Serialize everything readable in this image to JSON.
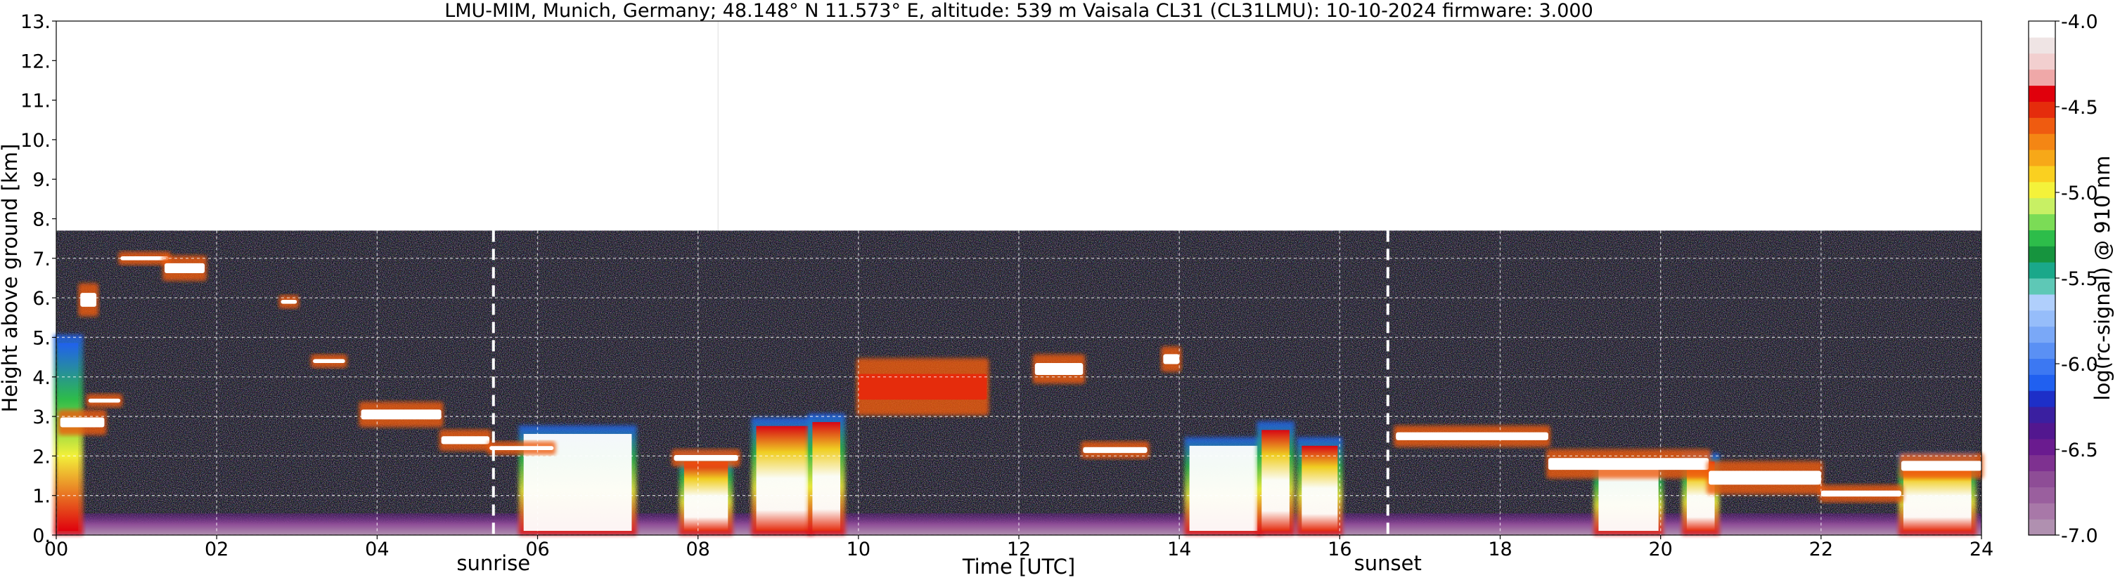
{
  "chart_data": {
    "type": "heatmap",
    "title": "LMU-MIM, Munich, Germany; 48.148° N 11.573° E, altitude: 539 m    Vaisala CL31 (CL31LMU): 10-10-2024    firmware: 3.000",
    "xlabel": "Time [UTC]",
    "ylabel": "Height above ground [km]",
    "xlim": [
      0,
      24
    ],
    "ylim": [
      0,
      13
    ],
    "x_ticks": [
      0,
      2,
      4,
      6,
      8,
      10,
      12,
      14,
      16,
      18,
      20,
      22,
      24
    ],
    "x_tick_labels": [
      "00",
      "02",
      "04",
      "06",
      "08",
      "10",
      "12",
      "14",
      "16",
      "18",
      "20",
      "22",
      "24"
    ],
    "y_ticks": [
      0,
      1,
      2,
      3,
      4,
      5,
      6,
      7,
      8,
      9,
      10,
      11,
      12,
      13
    ],
    "y_tick_labels": [
      "0.",
      "1.",
      "2.",
      "3.",
      "4.",
      "5.",
      "6.",
      "7.",
      "8.",
      "9.",
      "10.",
      "11.",
      "12.",
      "13."
    ],
    "grid": true,
    "data_top_km": 7.7,
    "sunrise_time": 5.45,
    "sunset_time": 16.6,
    "annotations": [
      {
        "text": "sunrise",
        "x": 5.45
      },
      {
        "text": "sunset",
        "x": 16.6
      }
    ],
    "colorbar": {
      "label": "log(rc-signal) @ 910 nm",
      "min": -7.0,
      "max": -4.0,
      "ticks": [
        -7.0,
        -6.5,
        -6.0,
        -5.5,
        -5.0,
        -4.5,
        -4.0
      ],
      "tick_labels": [
        "-7.0",
        "-6.5",
        "-6.0",
        "-5.5",
        "-5.0",
        "-4.5",
        "-4.0"
      ],
      "colors": [
        "#b090b0",
        "#a878a8",
        "#9a5f9e",
        "#8e4d96",
        "#7e3190",
        "#6a1b8f",
        "#52178f",
        "#3a1fa0",
        "#1d2fc8",
        "#2060f0",
        "#3c78f2",
        "#5a90f4",
        "#7aa8f7",
        "#96bdfa",
        "#b0cffc",
        "#5ec8b6",
        "#1aa88a",
        "#16943e",
        "#2dbd4a",
        "#7bdc56",
        "#c8f064",
        "#f4f23a",
        "#fad020",
        "#f7a818",
        "#f48614",
        "#ef5b10",
        "#e52c0c",
        "#e0000c",
        "#efa8a8",
        "#f2cfcf",
        "#efe4e4",
        "#ffffff"
      ]
    },
    "cloud_layers": [
      {
        "x": [
          0.05,
          0.6
        ],
        "y": [
          2.6,
          3.1
        ],
        "level": "very-high"
      },
      {
        "x": [
          0.3,
          0.5
        ],
        "y": [
          5.6,
          6.3
        ],
        "level": "very-high"
      },
      {
        "x": [
          0.8,
          1.4
        ],
        "y": [
          6.9,
          7.1
        ],
        "level": "very-high"
      },
      {
        "x": [
          1.35,
          1.85
        ],
        "y": [
          6.5,
          7.0
        ],
        "level": "very-high"
      },
      {
        "x": [
          2.8,
          3.0
        ],
        "y": [
          5.8,
          6.0
        ],
        "level": "very-high"
      },
      {
        "x": [
          3.2,
          3.6
        ],
        "y": [
          4.3,
          4.5
        ],
        "level": "very-high"
      },
      {
        "x": [
          0.4,
          0.8
        ],
        "y": [
          3.3,
          3.5
        ],
        "level": "very-high"
      },
      {
        "x": [
          3.8,
          4.8
        ],
        "y": [
          2.8,
          3.3
        ],
        "level": "very-high"
      },
      {
        "x": [
          4.8,
          5.4
        ],
        "y": [
          2.2,
          2.6
        ],
        "level": "very-high"
      },
      {
        "x": [
          5.4,
          6.2
        ],
        "y": [
          2.1,
          2.3
        ],
        "level": "very-high"
      },
      {
        "x": [
          7.7,
          8.5
        ],
        "y": [
          1.8,
          2.1
        ],
        "level": "very-high"
      },
      {
        "x": [
          10.0,
          11.6
        ],
        "y": [
          3.1,
          4.4
        ],
        "level": "high"
      },
      {
        "x": [
          12.2,
          12.8
        ],
        "y": [
          3.9,
          4.5
        ],
        "level": "very-high"
      },
      {
        "x": [
          13.8,
          14.0
        ],
        "y": [
          4.2,
          4.7
        ],
        "level": "very-high"
      },
      {
        "x": [
          12.8,
          13.6
        ],
        "y": [
          2.0,
          2.3
        ],
        "level": "very-high"
      },
      {
        "x": [
          16.7,
          18.6
        ],
        "y": [
          2.3,
          2.7
        ],
        "level": "very-high"
      },
      {
        "x": [
          18.6,
          20.6
        ],
        "y": [
          1.5,
          2.1
        ],
        "level": "very-high"
      },
      {
        "x": [
          20.6,
          22.0
        ],
        "y": [
          1.1,
          1.8
        ],
        "level": "very-high"
      },
      {
        "x": [
          22.0,
          23.0
        ],
        "y": [
          0.9,
          1.2
        ],
        "level": "very-high"
      },
      {
        "x": [
          23.0,
          24.0
        ],
        "y": [
          1.5,
          2.0
        ],
        "level": "very-high"
      }
    ],
    "low_cloud_regions": [
      {
        "x": [
          5.8,
          7.2
        ],
        "y": [
          0.0,
          2.7
        ],
        "level": "very-high"
      },
      {
        "x": [
          7.8,
          8.4
        ],
        "y": [
          0.0,
          2.0
        ],
        "level": "high"
      },
      {
        "x": [
          8.7,
          9.4
        ],
        "y": [
          0.0,
          2.9
        ],
        "level": "high"
      },
      {
        "x": [
          9.4,
          9.8
        ],
        "y": [
          0.0,
          3.0
        ],
        "level": "high"
      },
      {
        "x": [
          14.1,
          15.0
        ],
        "y": [
          0.0,
          2.4
        ],
        "level": "very-high"
      },
      {
        "x": [
          15.0,
          15.4
        ],
        "y": [
          0.0,
          2.8
        ],
        "level": "high"
      },
      {
        "x": [
          15.5,
          16.0
        ],
        "y": [
          0.0,
          2.4
        ],
        "level": "high"
      },
      {
        "x": [
          19.2,
          20.0
        ],
        "y": [
          0.0,
          1.8
        ],
        "level": "very-high"
      },
      {
        "x": [
          20.3,
          20.7
        ],
        "y": [
          0.0,
          2.0
        ],
        "level": "high"
      },
      {
        "x": [
          23.0,
          23.9
        ],
        "y": [
          0.0,
          2.0
        ],
        "level": "high"
      },
      {
        "x": [
          0.0,
          0.3
        ],
        "y": [
          0.0,
          5.0
        ],
        "level": "mid"
      }
    ]
  }
}
